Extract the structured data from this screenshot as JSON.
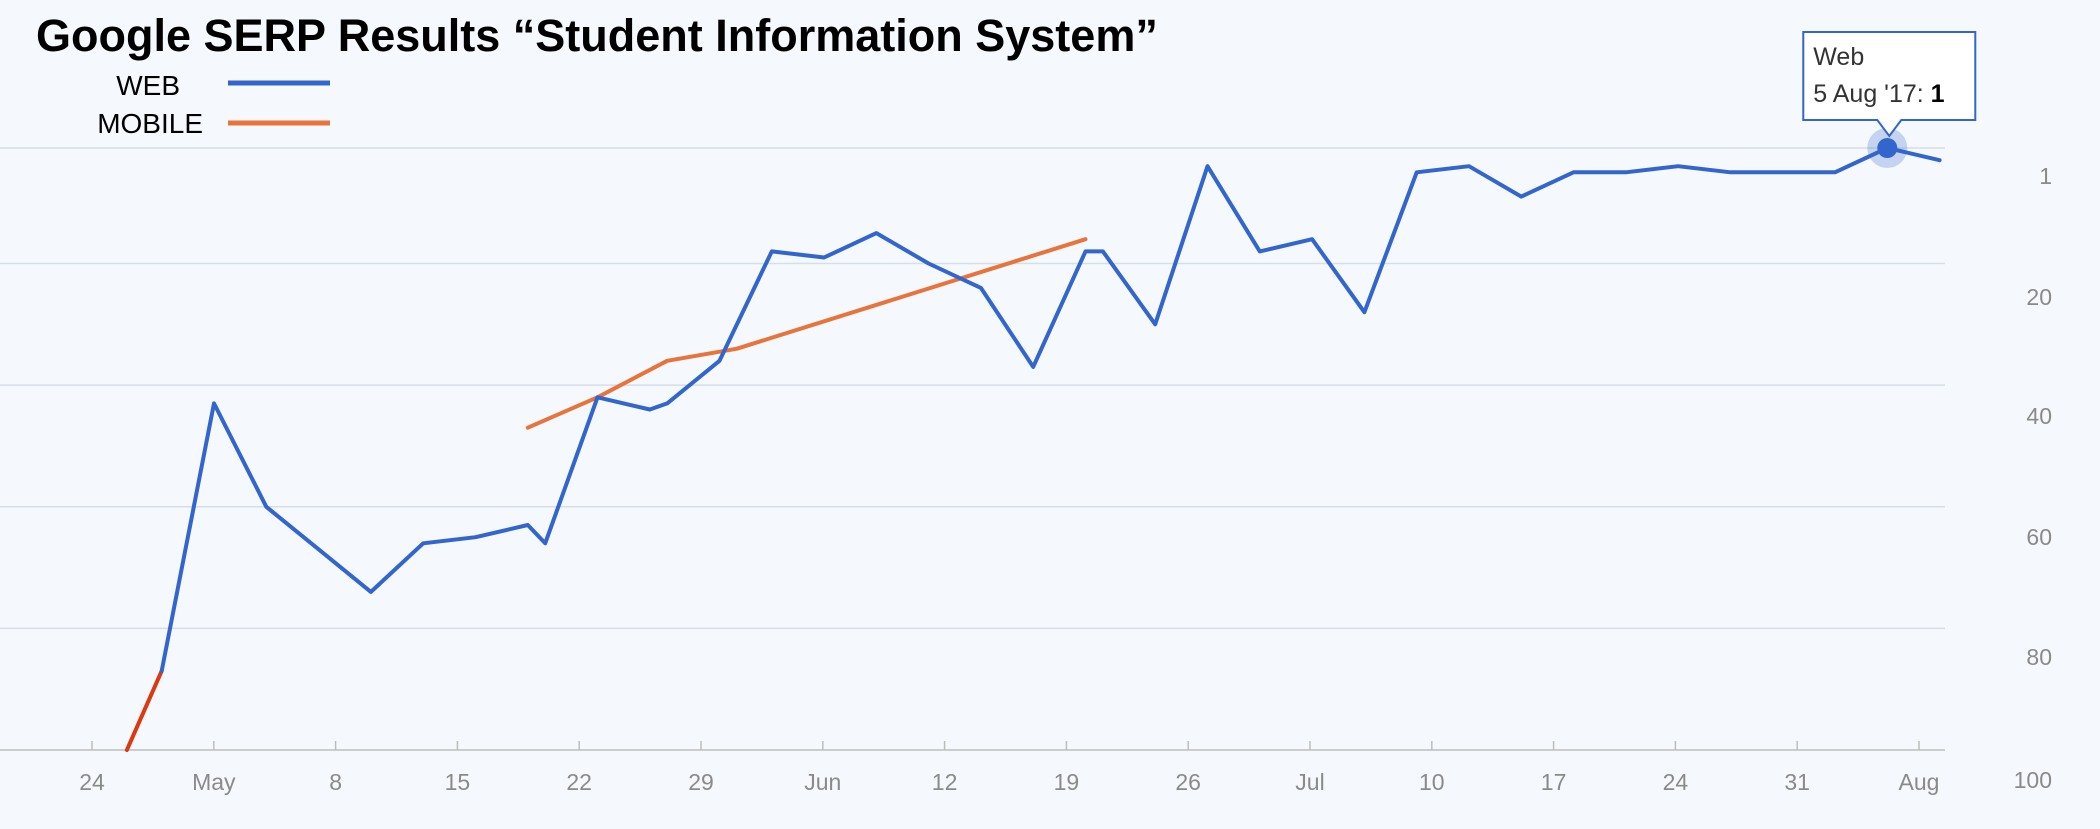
{
  "colors": {
    "web": "#3366cc",
    "mobile": "#e8743b",
    "pre_series": "#dc3912",
    "grid": "#d6dee8",
    "tick": "#8a8a8a",
    "background": "#f5f8fc"
  },
  "chart_data": {
    "type": "line",
    "title": "Google SERP Results “Student Information System”",
    "legend": {
      "placement": "top-left",
      "entries": [
        {
          "label": "WEB",
          "color": "#3366cc"
        },
        {
          "label": "MOBILE",
          "color": "#e8743b"
        }
      ]
    },
    "x_ticks": [
      "24",
      "May",
      "8",
      "15",
      "22",
      "29",
      "Jun",
      "12",
      "19",
      "26",
      "Jul",
      "10",
      "17",
      "24",
      "31",
      "Aug"
    ],
    "y_ticks": [
      "1",
      "20",
      "40",
      "60",
      "80",
      "100"
    ],
    "ylim": [
      100,
      1
    ],
    "y_reversed": true,
    "grid": true,
    "series": [
      {
        "name": "WEB",
        "points": [
          [
            "2017-04-28",
            87
          ],
          [
            "2017-05-01",
            43
          ],
          [
            "2017-05-04",
            60
          ],
          [
            "2017-05-07",
            67
          ],
          [
            "2017-05-10",
            74
          ],
          [
            "2017-05-13",
            66
          ],
          [
            "2017-05-16",
            65
          ],
          [
            "2017-05-19",
            63
          ],
          [
            "2017-05-20",
            66
          ],
          [
            "2017-05-23",
            42
          ],
          [
            "2017-05-26",
            44
          ],
          [
            "2017-05-27",
            43
          ],
          [
            "2017-05-30",
            36
          ],
          [
            "2017-06-02",
            18
          ],
          [
            "2017-06-05",
            19
          ],
          [
            "2017-06-08",
            15
          ],
          [
            "2017-06-11",
            20
          ],
          [
            "2017-06-14",
            24
          ],
          [
            "2017-06-17",
            37
          ],
          [
            "2017-06-20",
            18
          ],
          [
            "2017-06-21",
            18
          ],
          [
            "2017-06-24",
            30
          ],
          [
            "2017-06-27",
            4
          ],
          [
            "2017-06-30",
            18
          ],
          [
            "2017-07-03",
            16
          ],
          [
            "2017-07-06",
            28
          ],
          [
            "2017-07-09",
            5
          ],
          [
            "2017-07-12",
            4
          ],
          [
            "2017-07-15",
            9
          ],
          [
            "2017-07-18",
            5
          ],
          [
            "2017-07-21",
            5
          ],
          [
            "2017-07-24",
            4
          ],
          [
            "2017-07-27",
            5
          ],
          [
            "2017-07-30",
            5
          ],
          [
            "2017-08-02",
            5
          ],
          [
            "2017-08-05",
            1
          ],
          [
            "2017-08-08",
            3
          ]
        ]
      },
      {
        "name": "MOBILE",
        "points": [
          [
            "2017-05-19",
            47
          ],
          [
            "2017-05-23",
            42
          ],
          [
            "2017-05-27",
            36
          ],
          [
            "2017-05-31",
            34
          ],
          [
            "2017-06-20",
            16
          ]
        ]
      },
      {
        "points": [
          [
            "2017-04-26",
            100
          ],
          [
            "2017-04-28",
            87
          ]
        ]
      }
    ],
    "tooltip": {
      "series_label": "Web",
      "date_label": "5 Aug '17:",
      "value": "1"
    }
  }
}
